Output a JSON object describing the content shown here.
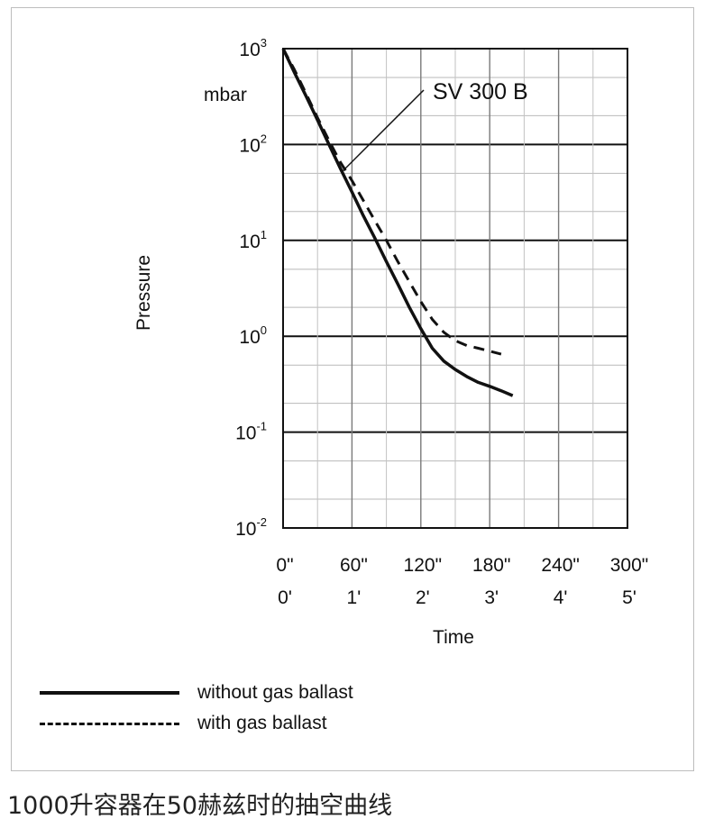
{
  "chart_data": {
    "type": "line",
    "title": "",
    "annotation": "SV 300 B",
    "ylabel": "Pressure",
    "yunit": "mbar",
    "xlabel": "Time",
    "yscale": "log",
    "ylim": [
      0.01,
      1000
    ],
    "xlim": [
      0,
      300
    ],
    "y_ticks": [
      {
        "base": "10",
        "exp": "3"
      },
      {
        "base": "10",
        "exp": "2"
      },
      {
        "base": "10",
        "exp": "1"
      },
      {
        "base": "10",
        "exp": "0"
      },
      {
        "base": "10",
        "exp": "-1"
      },
      {
        "base": "10",
        "exp": "-2"
      }
    ],
    "x_ticks_seconds": [
      "0\"",
      "60\"",
      "120\"",
      "180\"",
      "240\"",
      "300\""
    ],
    "x_ticks_minutes": [
      "0'",
      "1'",
      "2'",
      "3'",
      "4'",
      "5'"
    ],
    "grid": true,
    "legend_position": "bottom-left",
    "series": [
      {
        "name": "without gas ballast",
        "style": "solid",
        "x": [
          0,
          10,
          20,
          30,
          40,
          50,
          60,
          70,
          80,
          90,
          100,
          110,
          120,
          130,
          140,
          150,
          160,
          170,
          180,
          190,
          200
        ],
        "y": [
          1000,
          560,
          320,
          180,
          100,
          56,
          32,
          18,
          10.5,
          6.0,
          3.5,
          2.0,
          1.2,
          0.75,
          0.55,
          0.45,
          0.38,
          0.33,
          0.3,
          0.27,
          0.24
        ]
      },
      {
        "name": "with gas ballast",
        "style": "dashed",
        "x": [
          0,
          10,
          20,
          30,
          40,
          50,
          60,
          70,
          80,
          90,
          100,
          110,
          120,
          130,
          140,
          150,
          160,
          170,
          180,
          190
        ],
        "y": [
          1000,
          600,
          340,
          190,
          110,
          65,
          42,
          26,
          16,
          10,
          6.0,
          3.7,
          2.3,
          1.5,
          1.1,
          0.9,
          0.8,
          0.75,
          0.7,
          0.65
        ]
      }
    ]
  },
  "caption": "1000升容器在50赫兹时的抽空曲线"
}
